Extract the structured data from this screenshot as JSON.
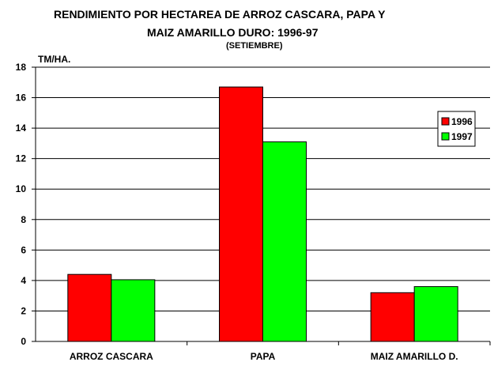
{
  "chart_data": {
    "type": "bar",
    "title_line1": "RENDIMIENTO POR HECTAREA DE ARROZ CASCARA, PAPA Y",
    "title_line2": "MAIZ AMARILLO DURO: 1996-97",
    "subtitle": "(SETIEMBRE)",
    "ylabel": "TM/HA.",
    "xlabel": "",
    "categories": [
      "ARROZ CASCARA",
      "PAPA",
      "MAIZ AMARILLO D."
    ],
    "series": [
      {
        "name": "1996",
        "color": "#ff0000",
        "values": [
          4.4,
          16.7,
          3.2
        ]
      },
      {
        "name": "1997",
        "color": "#00ff00",
        "values": [
          4.05,
          13.1,
          3.6
        ]
      }
    ],
    "ylim": [
      0,
      18
    ],
    "yticks": [
      0,
      2,
      4,
      6,
      8,
      10,
      12,
      14,
      16,
      18
    ],
    "grid": true,
    "legend_position": "right"
  }
}
